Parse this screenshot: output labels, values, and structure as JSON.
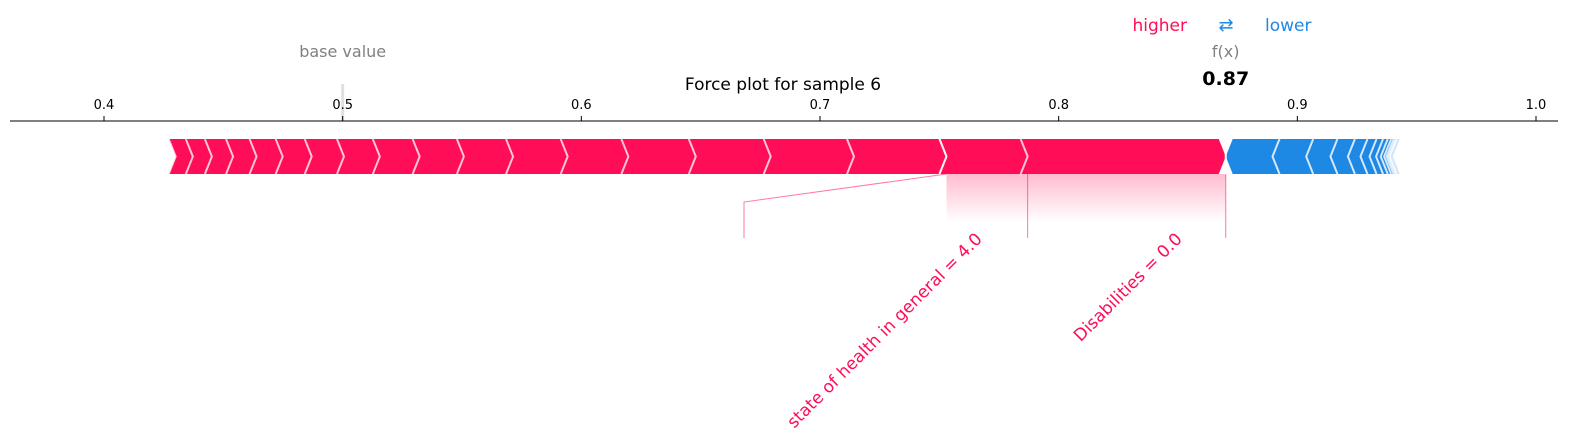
{
  "chart_data": {
    "type": "force",
    "title": "Force plot for sample 6",
    "legend": {
      "higher_label": "higher",
      "arrows": "⇄",
      "lower_label": "lower"
    },
    "base_value_label": "base value",
    "base_value": 0.5,
    "output_label": "f(x)",
    "output_value": 0.87,
    "output_value_text": "0.87",
    "xlim": [
      0.36,
      1.01
    ],
    "ticks": [
      0.4,
      0.5,
      0.6,
      0.7,
      0.8,
      0.9,
      1.0
    ],
    "tick_labels": [
      "0.4",
      "0.5",
      "0.6",
      "0.7",
      "0.8",
      "0.9",
      "1.0"
    ],
    "positive_range": [
      0.43,
      0.87
    ],
    "negative_range": [
      0.87,
      0.94
    ],
    "labeled_features": [
      {
        "label": "Disabilities = 0.0",
        "from": 0.787,
        "to": 0.87
      },
      {
        "label": "state of health in general = 4.0",
        "from": 0.753,
        "to": 0.787
      }
    ],
    "colors": {
      "positive": "#ff0d57",
      "negative": "#1e88e5",
      "positive_light": "#ffc3d5",
      "negative_light": "#d1e6fa",
      "axis": "#000000",
      "muted": "#808080"
    }
  }
}
